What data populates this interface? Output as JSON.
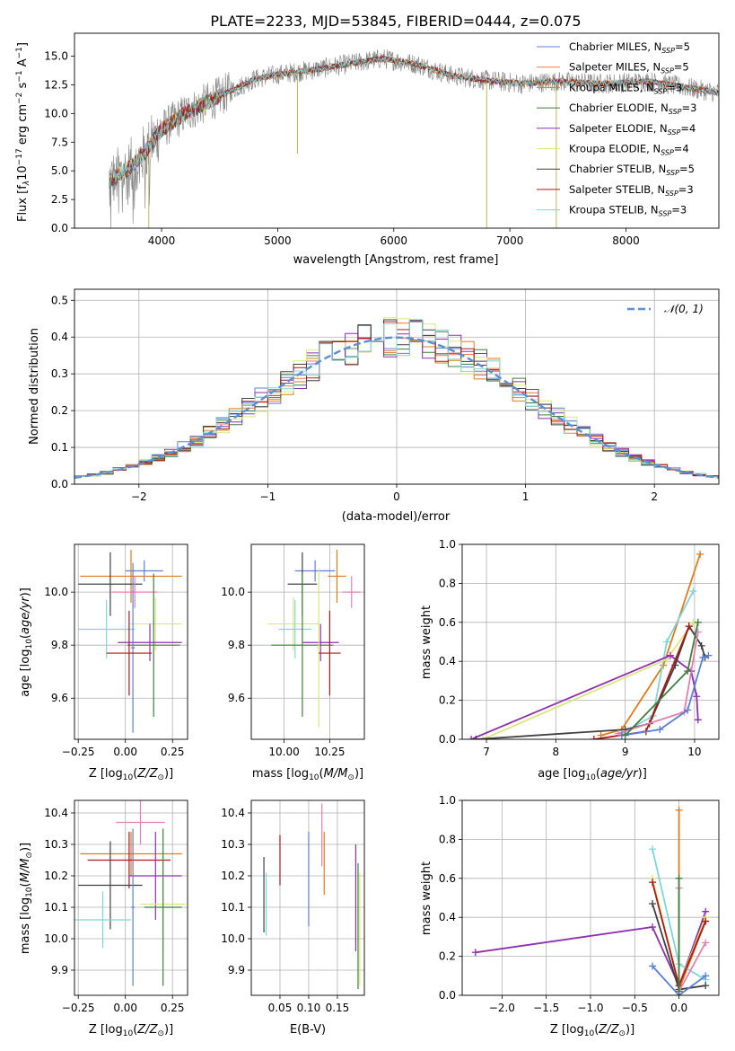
{
  "figure": {
    "title": "PLATE=2233, MJD=53845, FIBERID=0444, z=0.075"
  },
  "colors": {
    "chabrier_miles": "#5b7fd6",
    "salpeter_miles": "#ea7b4c",
    "kroupa_miles": "#e07b16",
    "chabrier_elodie": "#3f7f3f",
    "salpeter_elodie": "#8e2fb0",
    "kroupa_elodie": "#d9e87b",
    "chabrier_stelib": "#404040",
    "salpeter_stelib": "#b01818",
    "kroupa_stelib": "#7fd5d8",
    "pink": "#e57fb0",
    "gaussian": "#5b8fd6",
    "flux": "#808080"
  },
  "chart_data": [
    {
      "id": "spectrum",
      "type": "line",
      "xlabel": "wavelength [Angstrom, rest frame]",
      "ylabel": "Flux [f_λ 10^-17 erg cm^-2 s^-1 A^-1]",
      "xlim": [
        3250,
        8800
      ],
      "ylim": [
        0,
        17
      ],
      "xticks": [
        4000,
        5000,
        6000,
        7000,
        8000
      ],
      "yticks": [
        0.0,
        2.5,
        5.0,
        7.5,
        10.0,
        12.5,
        15.0
      ],
      "legend_position": "top-right",
      "legend": [
        "Chabrier MILES, N_SSP=5",
        "Salpeter MILES, N_SSP=5",
        "Kroupa MILES, N_SSP=3",
        "Chabrier ELODIE, N_SSP=3",
        "Salpeter ELODIE, N_SSP=4",
        "Kroupa ELODIE, N_SSP=4",
        "Chabrier STELIB, N_SSP=5",
        "Salpeter STELIB, N_SSP=3",
        "Kroupa STELIB, N_SSP=3"
      ],
      "continuum": [
        [
          3550,
          4.2
        ],
        [
          3700,
          5.0
        ],
        [
          3850,
          6.5
        ],
        [
          4000,
          8.6
        ],
        [
          4200,
          10.0
        ],
        [
          4500,
          11.5
        ],
        [
          4800,
          13.0
        ],
        [
          5000,
          13.4
        ],
        [
          5300,
          13.8
        ],
        [
          5600,
          14.3
        ],
        [
          5900,
          14.8
        ],
        [
          6200,
          14.3
        ],
        [
          6500,
          13.3
        ],
        [
          6800,
          12.9
        ],
        [
          7100,
          12.6
        ],
        [
          7400,
          12.8
        ],
        [
          7800,
          12.6
        ],
        [
          8200,
          12.8
        ],
        [
          8800,
          11.8
        ]
      ]
    },
    {
      "id": "residuals",
      "type": "step",
      "xlabel": "(data-model)/error",
      "ylabel": "Normed distribution",
      "xlim": [
        -2.5,
        2.5
      ],
      "ylim": [
        0,
        0.53
      ],
      "xticks": [
        -2,
        -1,
        0,
        1,
        2
      ],
      "yticks": [
        0.0,
        0.1,
        0.2,
        0.3,
        0.4,
        0.5
      ],
      "legend_position": "top-right",
      "legend": [
        "N(0,1)"
      ],
      "grid": true
    },
    {
      "id": "age_vs_Z",
      "type": "scatter",
      "xlabel": "Z [log10(Z/Z⊙)]",
      "ylabel": "age [log10(age/yr)]",
      "xlim": [
        -0.27,
        0.33
      ],
      "ylim": [
        9.445,
        10.18
      ],
      "xticks": [
        -0.25,
        0.0,
        0.25
      ],
      "yticks": [
        9.6,
        9.8,
        10.0
      ],
      "grid": true
    },
    {
      "id": "age_vs_mass",
      "type": "scatter",
      "xlabel": "mass [log10(M/M⊙)]",
      "ylabel": "",
      "xlim": [
        9.82,
        10.44
      ],
      "ylim": [
        9.445,
        10.18
      ],
      "xticks": [
        10.0,
        10.25
      ],
      "yticks": [
        9.6,
        9.8,
        10.0
      ],
      "grid": true
    },
    {
      "id": "weight_vs_age",
      "type": "line",
      "xlabel": "age [log10(age/yr)]",
      "ylabel": "mass weight",
      "xlim": [
        6.65,
        10.35
      ],
      "ylim": [
        0,
        1
      ],
      "xticks": [
        7,
        8,
        9,
        10
      ],
      "yticks": [
        0.0,
        0.2,
        0.4,
        0.6,
        0.8,
        1.0
      ],
      "grid": true
    },
    {
      "id": "mass_vs_Z",
      "type": "scatter",
      "xlabel": "Z [log10(Z/Z⊙)]",
      "ylabel": "mass [log10(M/M⊙)]",
      "xlim": [
        -0.27,
        0.33
      ],
      "ylim": [
        9.82,
        10.44
      ],
      "xticks": [
        -0.25,
        0.0,
        0.25
      ],
      "yticks": [
        9.9,
        10.0,
        10.1,
        10.2,
        10.3,
        10.4
      ],
      "grid": true
    },
    {
      "id": "mass_vs_ebv",
      "type": "scatter",
      "xlabel": "E(B-V)",
      "ylabel": "",
      "xlim": [
        0.0,
        0.197
      ],
      "ylim": [
        9.82,
        10.44
      ],
      "xticks": [
        0.05,
        0.1,
        0.15
      ],
      "yticks": [
        9.9,
        10.0,
        10.1,
        10.2,
        10.3,
        10.4
      ],
      "grid": true
    },
    {
      "id": "weight_vs_Z",
      "type": "line",
      "xlabel": "Z [log10(Z/Z⊙)]",
      "ylabel": "mass weight",
      "xlim": [
        -2.45,
        0.45
      ],
      "ylim": [
        0,
        1
      ],
      "xticks": [
        -2.0,
        -1.5,
        -1.0,
        -0.5,
        0.0
      ],
      "yticks": [
        0.0,
        0.2,
        0.4,
        0.6,
        0.8,
        1.0
      ],
      "grid": true
    }
  ],
  "crosses_age_Z": [
    {
      "c": "chabrier_miles",
      "x": 0.1,
      "xe": 0.1,
      "y": 10.08,
      "ye": 0.04
    },
    {
      "c": "kroupa_miles",
      "x": 0.03,
      "xe": 0.27,
      "y": 10.06,
      "ye": 0.1
    },
    {
      "c": "chabrier_stelib",
      "x": -0.08,
      "xe": 0.17,
      "y": 10.03,
      "ye": 0.12
    },
    {
      "c": "pink",
      "x": 0.05,
      "xe": 0.12,
      "y": 10.0,
      "ye": 0.06
    },
    {
      "c": "kroupa_elodie",
      "x": 0.16,
      "xe": 0.14,
      "y": 9.88,
      "ye": 0.1
    },
    {
      "c": "kroupa_stelib",
      "x": -0.1,
      "xe": 0.15,
      "y": 9.86,
      "ye": 0.11
    },
    {
      "c": "salpeter_elodie",
      "x": 0.13,
      "xe": 0.17,
      "y": 9.81,
      "ye": 0.07
    },
    {
      "c": "chabrier_elodie",
      "x": 0.15,
      "xe": 0.14,
      "y": 9.8,
      "ye": 0.27
    },
    {
      "c": "chabrier_miles",
      "x": 0.04,
      "xe": 0.01,
      "y": 9.79,
      "ye": 0.32
    },
    {
      "c": "salpeter_stelib",
      "x": 0.02,
      "xe": 0.12,
      "y": 9.77,
      "ye": 0.16
    }
  ],
  "crosses_age_mass": [
    {
      "c": "chabrier_miles",
      "x": 10.17,
      "xe": 0.11,
      "y": 10.08,
      "ye": 0.04
    },
    {
      "c": "kroupa_miles",
      "x": 10.29,
      "xe": 0.05,
      "y": 10.06,
      "ye": 0.1
    },
    {
      "c": "chabrier_stelib",
      "x": 10.1,
      "xe": 0.08,
      "y": 10.03,
      "ye": 0.12
    },
    {
      "c": "pink",
      "x": 10.37,
      "xe": 0.05,
      "y": 10.0,
      "ye": 0.06
    },
    {
      "c": "kroupa_elodie",
      "x": 10.05,
      "xe": 0.14,
      "y": 9.88,
      "ye": 0.1
    },
    {
      "c": "kroupa_stelib",
      "x": 10.06,
      "xe": 0.09,
      "y": 9.86,
      "ye": 0.11
    },
    {
      "c": "salpeter_elodie",
      "x": 10.2,
      "xe": 0.1,
      "y": 9.81,
      "ye": 0.07
    },
    {
      "c": "chabrier_elodie",
      "x": 10.1,
      "xe": 0.17,
      "y": 9.8,
      "ye": 0.27
    },
    {
      "c": "kroupa_elodie",
      "x": 10.19,
      "xe": 0.01,
      "y": 9.79,
      "ye": 0.3
    },
    {
      "c": "salpeter_stelib",
      "x": 10.25,
      "xe": 0.06,
      "y": 9.77,
      "ye": 0.16
    }
  ],
  "crosses_mass_Z": [
    {
      "c": "pink",
      "x": 0.08,
      "xe": 0.13,
      "y": 10.37,
      "ye": 0.07
    },
    {
      "c": "kroupa_miles",
      "x": 0.03,
      "xe": 0.27,
      "y": 10.27,
      "ye": 0.07
    },
    {
      "c": "salpeter_stelib",
      "x": 0.02,
      "xe": 0.22,
      "y": 10.25,
      "ye": 0.09
    },
    {
      "c": "salpeter_elodie",
      "x": 0.16,
      "xe": 0.14,
      "y": 10.2,
      "ye": 0.14
    },
    {
      "c": "chabrier_stelib",
      "x": -0.08,
      "xe": 0.17,
      "y": 10.17,
      "ye": 0.14
    },
    {
      "c": "kroupa_elodie",
      "x": 0.2,
      "xe": 0.12,
      "y": 10.11,
      "ye": 0.15
    },
    {
      "c": "chabrier_elodie",
      "x": 0.2,
      "xe": 0.1,
      "y": 10.1,
      "ye": 0.25
    },
    {
      "c": "kroupa_stelib",
      "x": -0.12,
      "xe": 0.15,
      "y": 10.06,
      "ye": 0.09
    },
    {
      "c": "chabrier_miles",
      "x": 0.04,
      "xe": 0.01,
      "y": 10.1,
      "ye": 0.25
    }
  ],
  "bars_mass_ebv": [
    {
      "c": "chabrier_stelib",
      "x": 0.022,
      "y": 10.14,
      "ye": 0.12
    },
    {
      "c": "kroupa_stelib",
      "x": 0.026,
      "y": 10.11,
      "ye": 0.1
    },
    {
      "c": "salpeter_stelib",
      "x": 0.05,
      "y": 10.25,
      "ye": 0.08
    },
    {
      "c": "chabrier_miles",
      "x": 0.1,
      "y": 10.19,
      "ye": 0.15
    },
    {
      "c": "pink",
      "x": 0.123,
      "y": 10.33,
      "ye": 0.1
    },
    {
      "c": "kroupa_miles",
      "x": 0.127,
      "y": 10.24,
      "ye": 0.1
    },
    {
      "c": "salpeter_elodie",
      "x": 0.182,
      "y": 10.13,
      "ye": 0.17
    },
    {
      "c": "chabrier_elodie",
      "x": 0.186,
      "y": 10.04,
      "ye": 0.2
    },
    {
      "c": "kroupa_elodie",
      "x": 0.189,
      "y": 10.03,
      "ye": 0.18
    }
  ],
  "weight_age_series": [
    {
      "c": "kroupa_miles",
      "pts": [
        [
          8.65,
          0.02
        ],
        [
          8.95,
          0.05
        ],
        [
          9.55,
          0.38
        ],
        [
          10.08,
          0.95
        ]
      ]
    },
    {
      "c": "kroupa_stelib",
      "pts": [
        [
          8.95,
          0.03
        ],
        [
          9.4,
          0.12
        ],
        [
          9.6,
          0.5
        ],
        [
          9.98,
          0.76
        ]
      ]
    },
    {
      "c": "kroupa_elodie",
      "pts": [
        [
          6.95,
          0.0
        ],
        [
          9.6,
          0.41
        ],
        [
          9.98,
          0.6
        ]
      ]
    },
    {
      "c": "salpeter_elodie",
      "pts": [
        [
          6.78,
          0.0
        ],
        [
          9.65,
          0.43
        ],
        [
          9.95,
          0.35
        ],
        [
          10.03,
          0.22
        ],
        [
          10.05,
          0.1
        ]
      ]
    },
    {
      "c": "chabrier_stelib",
      "pts": [
        [
          6.85,
          0.0
        ],
        [
          9.0,
          0.05
        ],
        [
          9.35,
          0.08
        ],
        [
          9.72,
          0.38
        ],
        [
          9.92,
          0.58
        ],
        [
          10.1,
          0.48
        ],
        [
          10.15,
          0.42
        ]
      ]
    },
    {
      "c": "salpeter_stelib",
      "pts": [
        [
          8.55,
          0.0
        ],
        [
          9.3,
          0.04
        ],
        [
          9.92,
          0.58
        ]
      ]
    },
    {
      "c": "pink",
      "pts": [
        [
          8.9,
          0.03
        ],
        [
          9.85,
          0.14
        ],
        [
          10.05,
          0.55
        ]
      ]
    },
    {
      "c": "chabrier_miles",
      "pts": [
        [
          8.95,
          0.02
        ],
        [
          9.5,
          0.05
        ],
        [
          9.9,
          0.15
        ],
        [
          10.12,
          0.42
        ],
        [
          10.2,
          0.43
        ]
      ]
    },
    {
      "c": "chabrier_elodie",
      "pts": [
        [
          9.0,
          0.02
        ],
        [
          9.9,
          0.35
        ],
        [
          10.05,
          0.6
        ]
      ]
    }
  ],
  "weight_Z_series": [
    {
      "c": "salpeter_elodie",
      "pts": [
        [
          -2.3,
          0.22
        ],
        [
          -0.3,
          0.35
        ],
        [
          0.0,
          0.05
        ],
        [
          0.3,
          0.43
        ]
      ]
    },
    {
      "c": "kroupa_miles",
      "pts": [
        [
          0.0,
          0.95
        ],
        [
          0.0,
          0.03
        ],
        [
          0.3,
          0.38
        ]
      ]
    },
    {
      "c": "kroupa_stelib",
      "pts": [
        [
          -0.3,
          0.75
        ],
        [
          0.0,
          0.16
        ],
        [
          0.3,
          0.08
        ]
      ]
    },
    {
      "c": "kroupa_elodie",
      "pts": [
        [
          -0.3,
          0.6
        ],
        [
          0.0,
          0.05
        ],
        [
          0.3,
          0.4
        ]
      ]
    },
    {
      "c": "salpeter_stelib",
      "pts": [
        [
          -0.3,
          0.58
        ],
        [
          0.0,
          0.05
        ],
        [
          0.3,
          0.38
        ]
      ]
    },
    {
      "c": "chabrier_stelib",
      "pts": [
        [
          -0.3,
          0.47
        ],
        [
          0.0,
          0.03
        ],
        [
          0.3,
          0.05
        ]
      ]
    },
    {
      "c": "chabrier_miles",
      "pts": [
        [
          -0.3,
          0.15
        ],
        [
          0.0,
          0.0
        ],
        [
          0.3,
          0.1
        ]
      ]
    },
    {
      "c": "pink",
      "pts": [
        [
          0.0,
          0.55
        ],
        [
          0.0,
          0.02
        ],
        [
          0.3,
          0.27
        ]
      ]
    },
    {
      "c": "chabrier_elodie",
      "pts": [
        [
          0.0,
          0.6
        ],
        [
          0.0,
          0.02
        ]
      ]
    }
  ]
}
